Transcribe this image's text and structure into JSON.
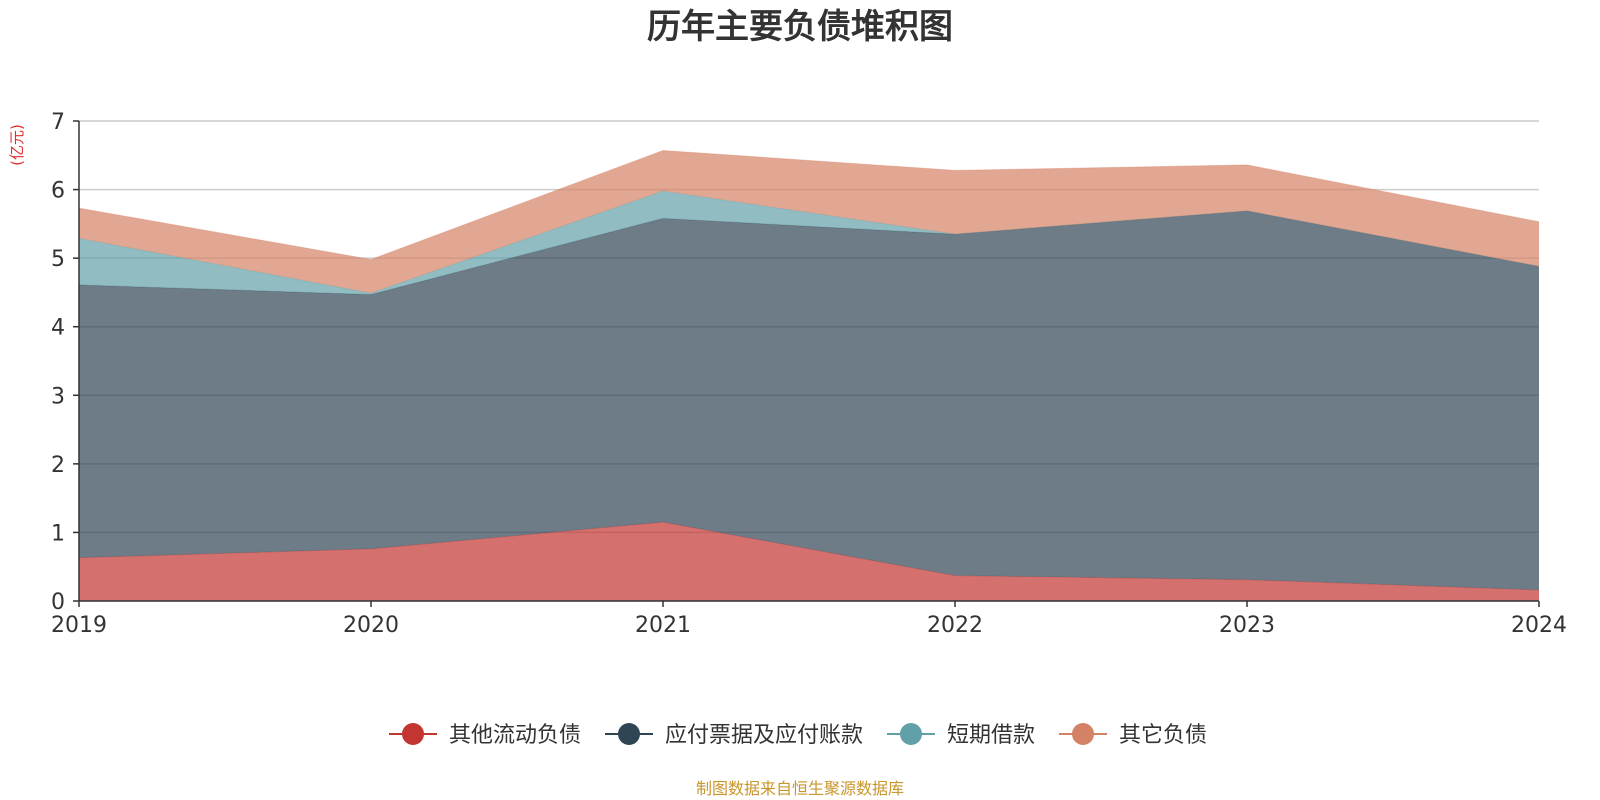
{
  "chart_data": {
    "type": "area",
    "stacked": true,
    "title": "历年主要负债堆积图",
    "unit_label": "(亿元)",
    "categories": [
      "2019",
      "2020",
      "2021",
      "2022",
      "2023",
      "2024"
    ],
    "ylim": [
      0,
      7
    ],
    "yticks": [
      0,
      1,
      2,
      3,
      4,
      5,
      6,
      7
    ],
    "grid": true,
    "legend_position": "bottom",
    "series": [
      {
        "name": "其他流动负债",
        "color": "#c23531",
        "values": [
          0.63,
          0.76,
          1.15,
          0.37,
          0.31,
          0.16
        ]
      },
      {
        "name": "应付票据及应付账款",
        "color": "#2f4554",
        "values": [
          3.98,
          3.71,
          4.43,
          4.98,
          5.38,
          4.72
        ]
      },
      {
        "name": "短期借款",
        "color": "#61a0a8",
        "values": [
          0.68,
          0.02,
          0.4,
          0.0,
          0.0,
          0.0
        ]
      },
      {
        "name": "其它负债",
        "color": "#d48265",
        "values": [
          0.44,
          0.49,
          0.59,
          0.93,
          0.67,
          0.65
        ]
      }
    ],
    "source_note": "制图数据来自恒生聚源数据库"
  }
}
